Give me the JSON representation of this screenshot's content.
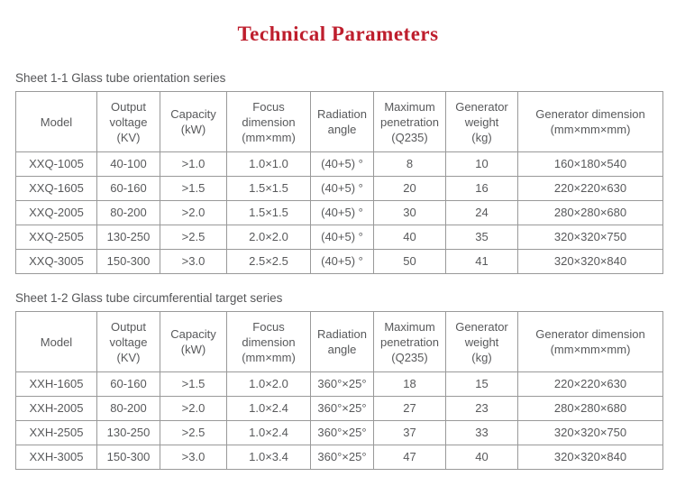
{
  "page": {
    "title": "Technical Parameters",
    "title_color": "#be1e2d",
    "text_color": "#58595b",
    "table_border_color": "#999999"
  },
  "columns": [
    "Model",
    "Output\nvoltage\n(KV)",
    "Capacity\n(kW)",
    "Focus\ndimension\n(mm×mm)",
    "Radiation\nangle",
    "Maximum\npenetration\n(Q235)",
    "Generator\nweight\n(kg)",
    "Generator dimension\n(mm×mm×mm)"
  ],
  "sheets": [
    {
      "label": "Sheet 1-1 Glass tube orientation series",
      "rows": [
        [
          "XXQ-1005",
          "40-100",
          ">1.0",
          "1.0×1.0",
          "(40+5) °",
          "8",
          "10",
          "160×180×540"
        ],
        [
          "XXQ-1605",
          "60-160",
          ">1.5",
          "1.5×1.5",
          "(40+5) °",
          "20",
          "16",
          "220×220×630"
        ],
        [
          "XXQ-2005",
          "80-200",
          ">2.0",
          "1.5×1.5",
          "(40+5) °",
          "30",
          "24",
          "280×280×680"
        ],
        [
          "XXQ-2505",
          "130-250",
          ">2.5",
          "2.0×2.0",
          "(40+5) °",
          "40",
          "35",
          "320×320×750"
        ],
        [
          "XXQ-3005",
          "150-300",
          ">3.0",
          "2.5×2.5",
          "(40+5) °",
          "50",
          "41",
          "320×320×840"
        ]
      ]
    },
    {
      "label": "Sheet 1-2 Glass tube circumferential target series",
      "rows": [
        [
          "XXH-1605",
          "60-160",
          ">1.5",
          "1.0×2.0",
          "360°×25°",
          "18",
          "15",
          "220×220×630"
        ],
        [
          "XXH-2005",
          "80-200",
          ">2.0",
          "1.0×2.4",
          "360°×25°",
          "27",
          "23",
          "280×280×680"
        ],
        [
          "XXH-2505",
          "130-250",
          ">2.5",
          "1.0×2.4",
          "360°×25°",
          "37",
          "33",
          "320×320×750"
        ],
        [
          "XXH-3005",
          "150-300",
          ">3.0",
          "1.0×3.4",
          "360°×25°",
          "47",
          "40",
          "320×320×840"
        ]
      ]
    }
  ]
}
